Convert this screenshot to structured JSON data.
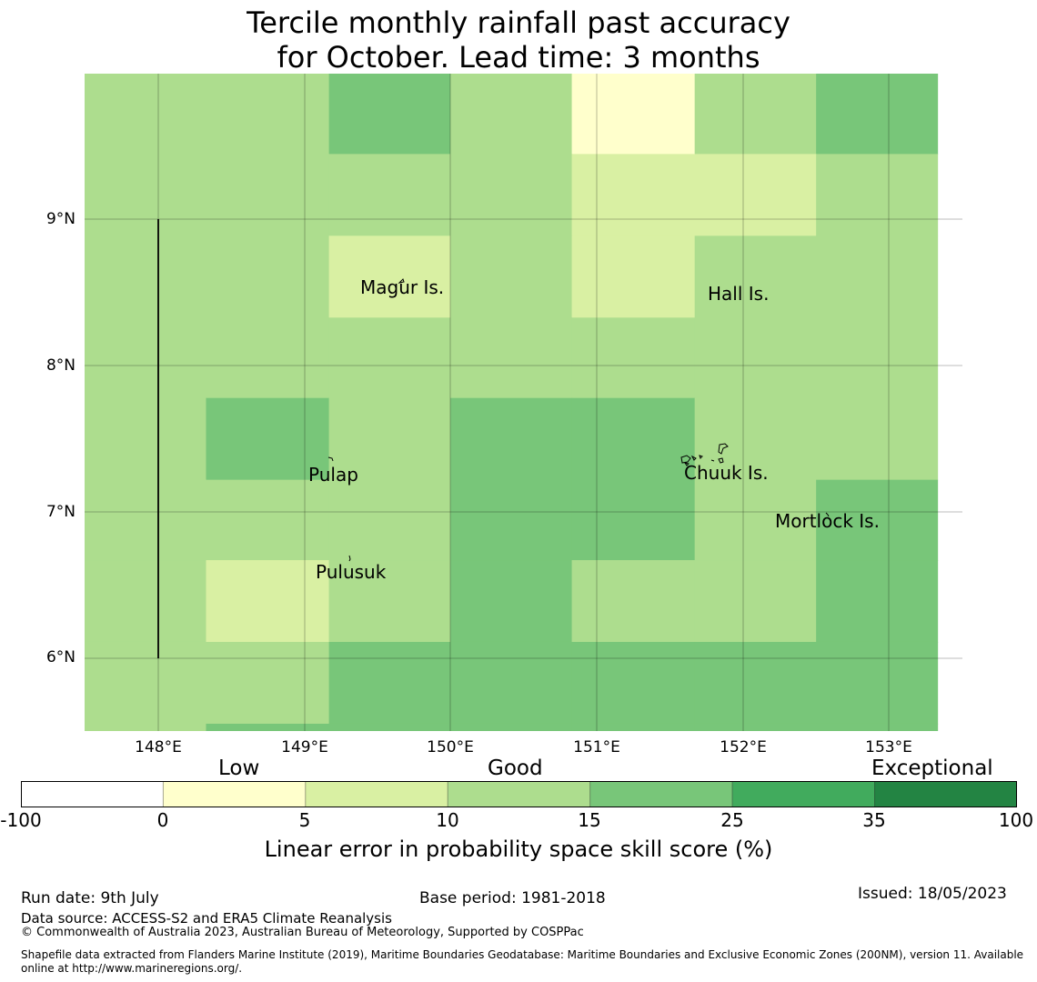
{
  "title": {
    "line1": "Tercile monthly rainfall past accuracy",
    "line2": "for October. Lead time: 3 months"
  },
  "map": {
    "lat_labels": [
      "9°N",
      "8°N",
      "7°N",
      "6°N"
    ],
    "lon_labels": [
      "148°E",
      "149°E",
      "150°E",
      "151°E",
      "152°E",
      "153°E"
    ],
    "place_labels": [
      "Magur Is.",
      "Hall Is.",
      "Pulap",
      "Chuuk Is.",
      "Mortlock Is.",
      "Pulusuk"
    ],
    "grid": {
      "lon_edges": [
        147.5,
        148.33,
        149.17,
        150.0,
        150.83,
        151.67,
        152.5,
        153.33
      ],
      "lat_edges": [
        5.5,
        5.55,
        6.11,
        6.67,
        7.22,
        7.78,
        8.33,
        8.89,
        9.45,
        10.0
      ],
      "rows_north_to_south": [
        [
          "10-15",
          "10-15",
          "15-25",
          "10-15",
          "0-5",
          "10-15",
          "15-25"
        ],
        [
          "10-15",
          "10-15",
          "10-15",
          "10-15",
          "5-10",
          "5-10",
          "10-15"
        ],
        [
          "10-15",
          "10-15",
          "5-10",
          "10-15",
          "5-10",
          "10-15",
          "10-15"
        ],
        [
          "10-15",
          "10-15",
          "10-15",
          "10-15",
          "10-15",
          "10-15",
          "10-15"
        ],
        [
          "10-15",
          "15-25",
          "10-15",
          "15-25",
          "15-25",
          "10-15",
          "10-15"
        ],
        [
          "10-15",
          "10-15",
          "10-15",
          "15-25",
          "15-25",
          "10-15",
          "15-25"
        ],
        [
          "10-15",
          "5-10",
          "10-15",
          "15-25",
          "10-15",
          "10-15",
          "15-25"
        ],
        [
          "10-15",
          "10-15",
          "15-25",
          "15-25",
          "15-25",
          "15-25",
          "15-25"
        ],
        [
          "10-15",
          "15-25",
          "15-25",
          "15-25",
          "15-25",
          "15-25",
          "15-25"
        ]
      ]
    }
  },
  "colorbar": {
    "category_labels": [
      "Low",
      "Good",
      "Exceptional"
    ],
    "ticks": [
      "-100",
      "0",
      "5",
      "10",
      "15",
      "25",
      "35",
      "100"
    ],
    "colors": [
      "#ffffff",
      "#ffffcc",
      "#d9f0a3",
      "#addd8e",
      "#78c679",
      "#41ab5d",
      "#238443"
    ],
    "label": "Linear error in probability space skill score (%)"
  },
  "footer": {
    "run_date": "Run date: 9th July",
    "base_period": "Base period: 1981-2018",
    "issued": "Issued: 18/05/2023",
    "data_source": "Data source: ACCESS-S2 and ERA5 Climate Reanalysis",
    "copyright": "© Commonwealth of Australia 2023, Australian Bureau of Meteorology, Supported by COSPPac",
    "shapefile": "Shapefile data extracted from Flanders Marine Institute (2019), Maritime Boundaries Geodatabase: Maritime Boundaries and Exclusive Economic Zones (200NM), version 11. Available online at http://www.marineregions.org/."
  }
}
